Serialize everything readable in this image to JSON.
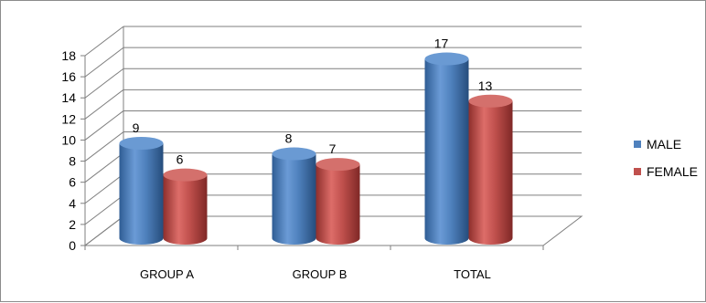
{
  "chart_data": {
    "type": "bar",
    "style": "3d-cylinder",
    "categories": [
      "GROUP A",
      "GROUP B",
      "TOTAL"
    ],
    "series": [
      {
        "name": "MALE",
        "values": [
          9,
          8,
          17
        ],
        "color": "#4f81bd"
      },
      {
        "name": "FEMALE",
        "values": [
          6,
          7,
          13
        ],
        "color": "#c0504d"
      }
    ],
    "ylim": [
      0,
      18
    ],
    "yticks": [
      0,
      2,
      4,
      6,
      8,
      10,
      12,
      14,
      16,
      18
    ],
    "grid": true,
    "legend_position": "right",
    "data_labels": true
  }
}
